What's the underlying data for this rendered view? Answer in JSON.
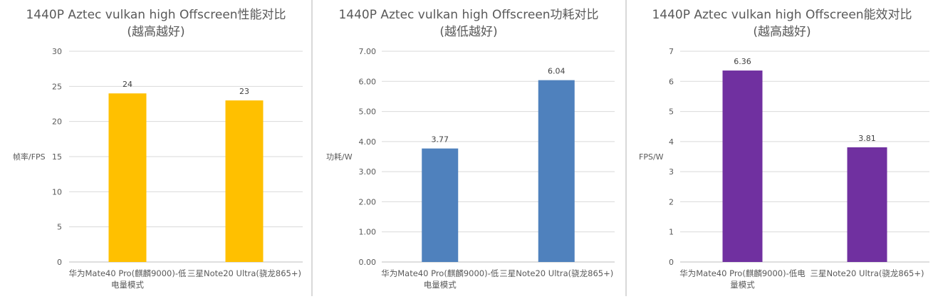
{
  "chart_data": [
    {
      "type": "bar",
      "title": "1440P Aztec vulkan high Offscreen性能对比",
      "subtitle": "(越高越好)",
      "ylabel": "帧率/FPS",
      "xlabel": "",
      "categories": [
        "华为Mate40 Pro(麒麟9000)-低电量模式",
        "三星Note20 Ultra(骁龙865+)"
      ],
      "category_lines": [
        [
          "华为Mate40 Pro(麒麟9000)-低",
          "电量模式"
        ],
        [
          "三星Note20 Ultra(骁龙865+)"
        ]
      ],
      "values": [
        24,
        23
      ],
      "data_labels": [
        "24",
        "23"
      ],
      "ylim": [
        0,
        30
      ],
      "yticks": [
        "0",
        "5",
        "10",
        "15",
        "20",
        "25",
        "30"
      ],
      "color": "#FFC000",
      "grid": true,
      "legend": "none"
    },
    {
      "type": "bar",
      "title": "1440P Aztec vulkan high Offscreen功耗对比",
      "subtitle": "(越低越好)",
      "ylabel": "功耗/W",
      "xlabel": "",
      "categories": [
        "华为Mate40 Pro(麒麟9000)-低电量模式",
        "三星Note20 Ultra(骁龙865+)"
      ],
      "category_lines": [
        [
          "华为Mate40 Pro(麒麟9000)-低",
          "电量模式"
        ],
        [
          "三星Note20 Ultra(骁龙865+)"
        ]
      ],
      "values": [
        3.77,
        6.04
      ],
      "data_labels": [
        "3.77",
        "6.04"
      ],
      "ylim": [
        0,
        7
      ],
      "yticks": [
        "0.00",
        "1.00",
        "2.00",
        "3.00",
        "4.00",
        "5.00",
        "6.00",
        "7.00"
      ],
      "color": "#4F81BD",
      "grid": true,
      "legend": "none"
    },
    {
      "type": "bar",
      "title": "1440P Aztec vulkan high Offscreen能效对比",
      "subtitle": "(越高越好)",
      "ylabel": "FPS/W",
      "xlabel": "",
      "categories": [
        "华为Mate40 Pro(麒麟9000)-低电量模式",
        "三星Note20 Ultra(骁龙865+)"
      ],
      "category_lines": [
        [
          "华为Mate40 Pro(麒麟9000)-低电",
          "量模式"
        ],
        [
          "三星Note20 Ultra(骁龙865+)"
        ]
      ],
      "values": [
        6.36,
        3.81
      ],
      "data_labels": [
        "6.36",
        "3.81"
      ],
      "ylim": [
        0,
        7
      ],
      "yticks": [
        "0",
        "1",
        "2",
        "3",
        "4",
        "5",
        "6",
        "7"
      ],
      "color": "#7030A0",
      "grid": true,
      "legend": "none"
    }
  ]
}
